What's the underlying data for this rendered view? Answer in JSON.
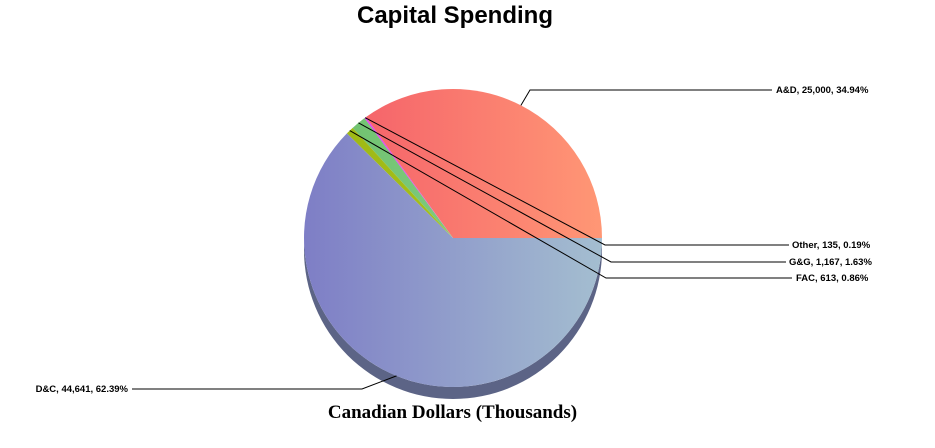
{
  "chart_data": {
    "type": "pie",
    "title": "Capital Spending",
    "xlabel": "Canadian Dollars (Thousands)",
    "slices": [
      {
        "name": "A&D",
        "value": 25000,
        "percent": 34.94,
        "label": "A&D, 25,000, 34.94%",
        "color_start": "#f35868",
        "color_end": "#ff9775"
      },
      {
        "name": "Other",
        "value": 135,
        "percent": 0.19,
        "label": "Other, 135, 0.19%",
        "color_start": "#e040e8",
        "color_end": "#e060f0"
      },
      {
        "name": "G&G",
        "value": 1167,
        "percent": 1.63,
        "label": "G&G, 1,167, 1.63%",
        "color_start": "#6cbf6c",
        "color_end": "#8fd58f"
      },
      {
        "name": "FAC",
        "value": 613,
        "percent": 0.86,
        "label": "FAC, 613, 0.86%",
        "color_start": "#9cb614",
        "color_end": "#b0c820"
      },
      {
        "name": "D&C",
        "value": 44641,
        "percent": 62.39,
        "label": "D&C, 44,641, 62.39%",
        "color_start": "#7e7ec6",
        "color_end": "#a4bed0"
      }
    ]
  }
}
